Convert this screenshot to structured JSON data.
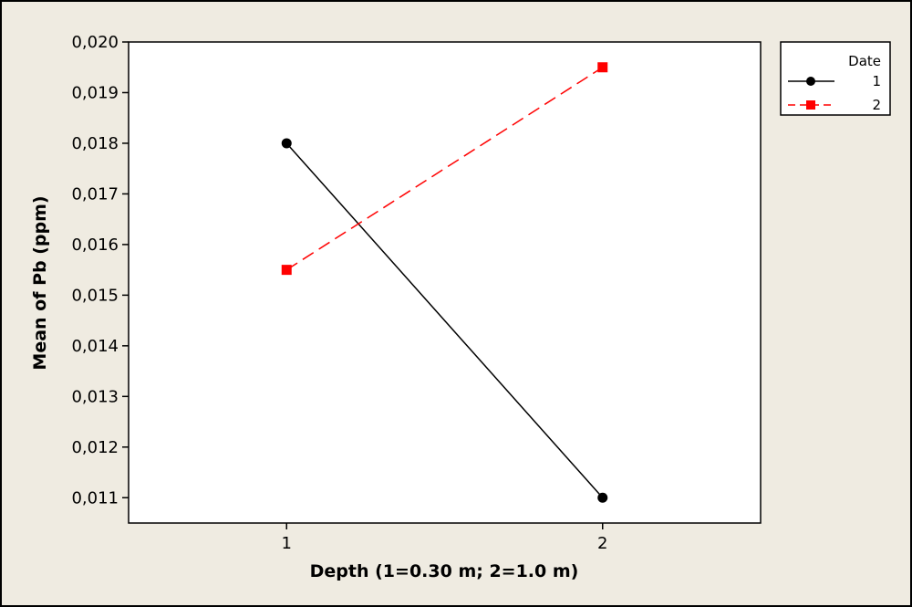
{
  "chart_data": {
    "type": "line",
    "title": "",
    "xlabel": "Depth (1=0.30 m; 2=1.0 m)",
    "ylabel": "Mean of Pb (ppm)",
    "x": [
      1,
      2
    ],
    "x_tick_labels": [
      "1",
      "2"
    ],
    "xlim": [
      0.5,
      2.5
    ],
    "ylim": [
      0.0105,
      0.02
    ],
    "y_ticks": [
      0.011,
      0.012,
      0.013,
      0.014,
      0.015,
      0.016,
      0.017,
      0.018,
      0.019,
      0.02
    ],
    "y_tick_labels": [
      "0,011",
      "0,012",
      "0,013",
      "0,014",
      "0,015",
      "0,016",
      "0,017",
      "0,018",
      "0,019",
      "0,020"
    ],
    "grid": false,
    "legend": {
      "title": "Date",
      "placement": "top-right outside"
    },
    "series": [
      {
        "name": "1",
        "values": [
          0.018,
          0.011
        ],
        "color": "#000000",
        "marker": "circle",
        "line_style": "solid"
      },
      {
        "name": "2",
        "values": [
          0.0155,
          0.0195
        ],
        "color": "#ff0000",
        "marker": "square",
        "line_style": "dashed"
      }
    ]
  }
}
